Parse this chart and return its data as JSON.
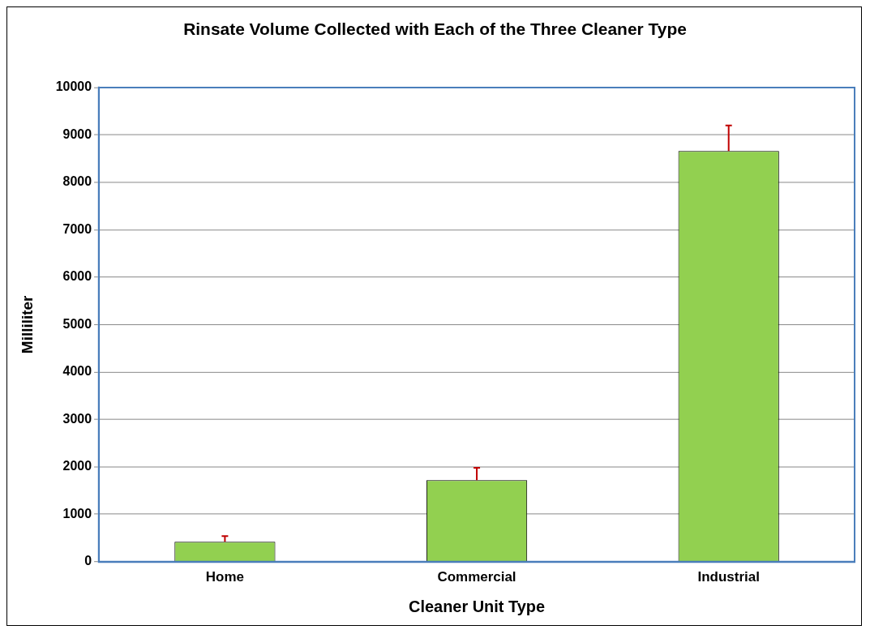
{
  "chart_data": {
    "type": "bar",
    "title": "Rinsate Volume Collected with Each of the Three Cleaner Type",
    "xlabel": "Cleaner Unit Type",
    "ylabel": "Milliliter",
    "categories": [
      "Home",
      "Commercial",
      "Industrial"
    ],
    "values": [
      420,
      1720,
      8660
    ],
    "errors": [
      [
        420,
        540
      ],
      [
        1720,
        1980
      ],
      [
        8660,
        9200
      ]
    ],
    "color": "#92d050",
    "ylim": [
      0,
      10000
    ],
    "yticks": [
      0,
      1000,
      2000,
      3000,
      4000,
      5000,
      6000,
      7000,
      8000,
      9000,
      10000
    ],
    "grid": "y"
  }
}
